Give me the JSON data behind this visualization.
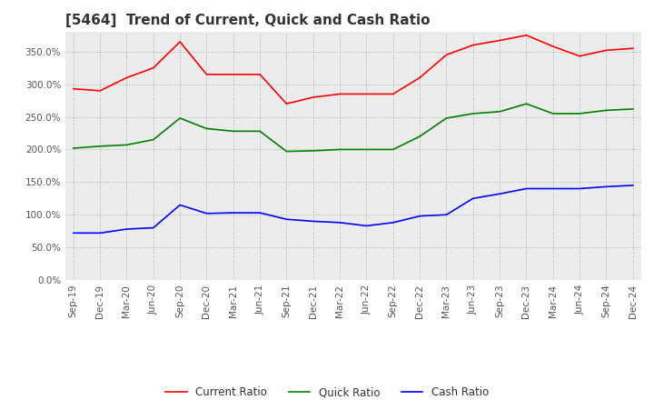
{
  "title": "[5464]  Trend of Current, Quick and Cash Ratio",
  "x_labels": [
    "Sep-19",
    "Dec-19",
    "Mar-20",
    "Jun-20",
    "Sep-20",
    "Dec-20",
    "Mar-21",
    "Jun-21",
    "Sep-21",
    "Dec-21",
    "Mar-22",
    "Jun-22",
    "Sep-22",
    "Dec-22",
    "Mar-23",
    "Jun-23",
    "Sep-23",
    "Dec-23",
    "Mar-24",
    "Jun-24",
    "Sep-24",
    "Dec-24"
  ],
  "current_ratio": [
    293,
    290,
    310,
    325,
    365,
    315,
    315,
    315,
    270,
    280,
    285,
    285,
    285,
    310,
    345,
    360,
    367,
    375,
    358,
    343,
    352,
    355
  ],
  "quick_ratio": [
    202,
    205,
    207,
    215,
    248,
    232,
    228,
    228,
    197,
    198,
    200,
    200,
    200,
    220,
    248,
    255,
    258,
    270,
    255,
    255,
    260,
    262
  ],
  "cash_ratio": [
    72,
    72,
    78,
    80,
    115,
    102,
    103,
    103,
    93,
    90,
    88,
    83,
    88,
    98,
    100,
    125,
    132,
    140,
    140,
    140,
    143,
    145
  ],
  "current_color": "#FF0000",
  "quick_color": "#008000",
  "cash_color": "#0000FF",
  "ylim": [
    0,
    380
  ],
  "yticks": [
    0,
    50,
    100,
    150,
    200,
    250,
    300,
    350
  ],
  "background_color": "#FFFFFF",
  "plot_bg_color": "#ECECEC",
  "grid_color": "#AAAAAA",
  "title_fontsize": 11,
  "label_fontsize": 7.5,
  "legend_fontsize": 8.5
}
